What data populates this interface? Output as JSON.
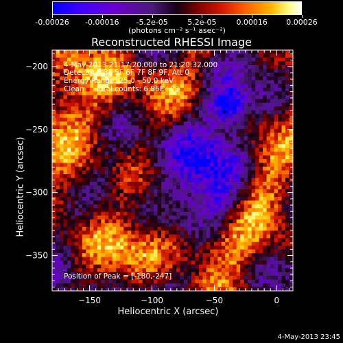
{
  "colorbar": {
    "ticks": [
      "-0.00026",
      "-0.00016",
      "-5.2e-05",
      "5.2e-05",
      "0.00016",
      "0.00026"
    ],
    "unit": "(photons cm⁻² s⁻¹ asec⁻²)",
    "range": [
      -0.00026,
      0.00026
    ]
  },
  "annotations": {
    "time": "4-May-2013 21:17:20.000 to 21:20:32.000",
    "detectors": "Detectors: 3F 5F 6F 7F 8F 9F, Att 0",
    "energy": "Energy Range: 25.0 - 50.0 keV",
    "clean": "Clean     Total counts: 6.86E+03",
    "peak": "Position of Peak = [-180,-247]"
  },
  "timestamp": "4-May-2013 23:45",
  "chart_data": {
    "type": "heatmap",
    "title": "Reconstructed RHESSI Image",
    "xlabel": "Heliocentric X (arcsec)",
    "ylabel": "Heliocentric Y (arcsec)",
    "xlim": [
      -180,
      13
    ],
    "ylim": [
      -378,
      -187
    ],
    "xticks": [
      -150,
      -100,
      -50,
      0
    ],
    "yticks": [
      -200,
      -250,
      -300,
      -350
    ],
    "cmap": [
      "#0000ff",
      "#6a00cc",
      "#150010",
      "#d21800",
      "#ff8c00",
      "#ffff80",
      "#ffffff"
    ],
    "features": [
      {
        "kind": "negative-minimum",
        "x": -42,
        "y": -236
      },
      {
        "kind": "positive-band",
        "region": "upper-left"
      },
      {
        "kind": "positive-band",
        "region": "lower"
      }
    ]
  }
}
